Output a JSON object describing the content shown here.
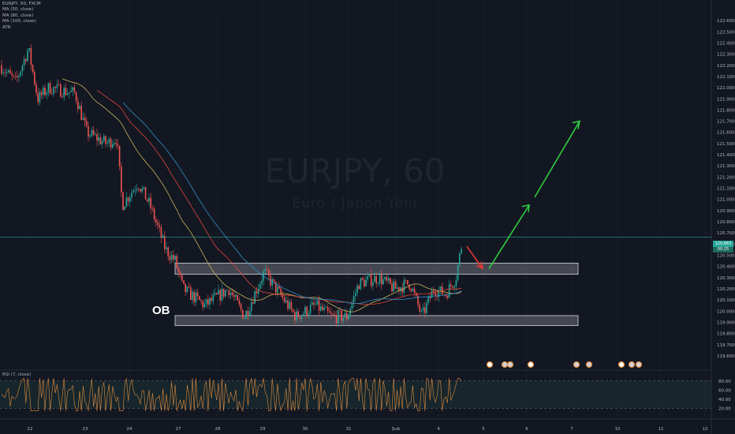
{
  "header": {
    "symbol_line": "EURJPY, 60, FXCM",
    "indicators": [
      "MA (50, close)",
      "MA (80, close)",
      "MA (100, close)",
      "ATR"
    ]
  },
  "watermark": {
    "title": "EURJPY, 60",
    "subtitle": "Euro / Japon Yeni"
  },
  "annotation": {
    "ob_label": "OB"
  },
  "price_tags": {
    "last": "120.663",
    "countdown": "00:25"
  },
  "rsi_panel": {
    "label": "RSI (7, close)",
    "levels": [
      "80.00",
      "60.00",
      "40.00",
      "20.00"
    ]
  },
  "colors": {
    "background": "#131722",
    "up_candle": "#26a69a",
    "down_candle": "#ef5350",
    "long_arrow": "#2ecc40",
    "short_arrow": "#e53935",
    "zone_fill": "#3a3d45",
    "ma50": "#c9b458",
    "ma80": "#e0443b",
    "ma100": "#2f8fc9",
    "rsi_line": "#e08a3c",
    "current_price_line": "#26a69a"
  },
  "chart_data": {
    "type": "candlestick",
    "symbol": "EURJPY",
    "timeframe": "60",
    "y_axis": {
      "ylim": [
        119.55,
        122.7
      ],
      "tick_labels": [
        "122.600",
        "122.500",
        "122.400",
        "122.300",
        "122.200",
        "122.100",
        "122.000",
        "121.900",
        "121.800",
        "121.700",
        "121.600",
        "121.500",
        "121.400",
        "121.300",
        "121.200",
        "121.100",
        "121.000",
        "120.900",
        "120.800",
        "120.700",
        "120.600",
        "120.500",
        "120.400",
        "120.300",
        "120.200",
        "120.100",
        "120.000",
        "119.900",
        "119.800",
        "119.700",
        "119.600"
      ]
    },
    "x_axis": {
      "tick_labels": [
        "22",
        "23",
        "24",
        "27",
        "28",
        "29",
        "30",
        "31",
        "Şub",
        "4",
        "5",
        "6",
        "7",
        "10",
        "11",
        "12"
      ]
    },
    "current_price": 120.663,
    "zones": [
      {
        "name": "upper-zone",
        "from_date": "27",
        "to_date": "7",
        "top": 120.43,
        "bottom": 120.33
      },
      {
        "name": "ob-zone",
        "from_date": "27",
        "to_date": "7",
        "top": 119.96,
        "bottom": 119.87
      }
    ],
    "arrows": [
      {
        "name": "pullback-arrow",
        "from": [
          120.58,
          120.6
        ],
        "to": [
          120.38,
          120.33
        ]
      },
      {
        "name": "long-arrow",
        "from": [
          120.6,
          120.33
        ],
        "to": [
          121.7,
          121.65
        ]
      }
    ],
    "rsi_levels": [
      80,
      20
    ]
  }
}
